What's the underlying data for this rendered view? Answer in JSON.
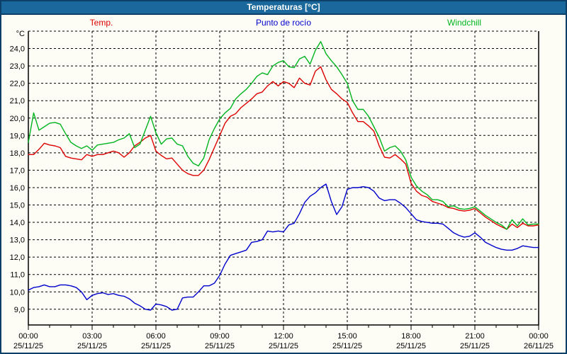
{
  "window": {
    "title": "Temperaturas [°C]"
  },
  "chart_data": {
    "type": "line",
    "title": "Temperaturas [°C]",
    "ylabel": "°C",
    "grid": "dashed",
    "legend_position": "top",
    "ylim": [
      8.1,
      25.0
    ],
    "x_start_hour": 0,
    "x_end_hour": 24,
    "x_step_hours": 0.25,
    "yticks": [
      {
        "value": 24,
        "label": "24,0"
      },
      {
        "value": 23,
        "label": "23,0"
      },
      {
        "value": 22,
        "label": "22,0"
      },
      {
        "value": 21,
        "label": "21,0"
      },
      {
        "value": 20,
        "label": "20,0"
      },
      {
        "value": 19,
        "label": "19,0"
      },
      {
        "value": 18,
        "label": "18,0"
      },
      {
        "value": 17,
        "label": "17,0"
      },
      {
        "value": 16,
        "label": "16,0"
      },
      {
        "value": 15,
        "label": "15,0"
      },
      {
        "value": 14,
        "label": "14,0"
      },
      {
        "value": 13,
        "label": "13,0"
      },
      {
        "value": 12,
        "label": "12,0"
      },
      {
        "value": 11,
        "label": "11,0"
      },
      {
        "value": 10,
        "label": "10,0"
      },
      {
        "value": 9,
        "label": "9,0"
      }
    ],
    "xticks": [
      {
        "hour": 0,
        "time": "00:00",
        "date": "25/11/25"
      },
      {
        "hour": 3,
        "time": "03:00",
        "date": "25/11/25"
      },
      {
        "hour": 6,
        "time": "06:00",
        "date": "25/11/25"
      },
      {
        "hour": 9,
        "time": "09:00",
        "date": "25/11/25"
      },
      {
        "hour": 12,
        "time": "12:00",
        "date": "25/11/25"
      },
      {
        "hour": 15,
        "time": "15:00",
        "date": "25/11/25"
      },
      {
        "hour": 18,
        "time": "18:00",
        "date": "25/11/25"
      },
      {
        "hour": 21,
        "time": "21:00",
        "date": "25/11/25"
      },
      {
        "hour": 24,
        "time": "00:00",
        "date": "26/11/25"
      }
    ],
    "series": [
      {
        "key": "temp",
        "name": "Temp.",
        "color": "#dd0000",
        "values": [
          17.9,
          17.9,
          18.2,
          18.55,
          18.45,
          18.4,
          18.3,
          17.8,
          17.7,
          17.65,
          17.6,
          17.9,
          17.8,
          17.9,
          17.9,
          18.0,
          18.1,
          18.0,
          17.75,
          18.0,
          18.4,
          18.6,
          18.85,
          19.0,
          18.1,
          17.85,
          17.65,
          17.7,
          17.35,
          17.0,
          16.8,
          16.7,
          16.7,
          17.0,
          17.6,
          18.3,
          19.0,
          19.7,
          20.1,
          20.25,
          20.6,
          20.85,
          21.1,
          21.4,
          21.5,
          21.85,
          22.1,
          21.85,
          22.1,
          22.0,
          21.75,
          22.3,
          22.0,
          21.9,
          22.7,
          22.95,
          22.2,
          21.65,
          21.4,
          21.1,
          20.9,
          20.3,
          19.8,
          19.8,
          19.55,
          19.25,
          18.4,
          17.75,
          17.7,
          17.9,
          17.65,
          17.35,
          16.25,
          15.8,
          15.55,
          15.45,
          15.2,
          15.1,
          15.0,
          14.85,
          14.8,
          14.7,
          14.65,
          14.7,
          14.8,
          14.55,
          14.3,
          14.1,
          13.9,
          13.75,
          13.6,
          13.9,
          13.7,
          13.95,
          13.8,
          13.8,
          13.85
        ]
      },
      {
        "key": "dew-point",
        "name": "Punto de rocío",
        "color": "#0000cc",
        "values": [
          10.1,
          10.25,
          10.3,
          10.4,
          10.3,
          10.3,
          10.4,
          10.4,
          10.35,
          10.25,
          10.0,
          9.55,
          9.8,
          9.9,
          9.95,
          9.85,
          9.9,
          9.8,
          9.75,
          9.6,
          9.35,
          9.2,
          9.0,
          8.95,
          9.3,
          9.25,
          9.15,
          8.95,
          9.0,
          9.65,
          9.7,
          9.7,
          10.0,
          10.35,
          10.35,
          10.5,
          10.95,
          11.6,
          12.1,
          12.2,
          12.3,
          12.4,
          12.85,
          12.9,
          13.0,
          13.5,
          13.45,
          13.5,
          13.45,
          13.85,
          13.95,
          14.5,
          15.15,
          15.5,
          15.7,
          16.0,
          16.2,
          15.2,
          14.45,
          14.9,
          15.9,
          16.0,
          16.0,
          16.05,
          16.0,
          15.8,
          15.4,
          15.25,
          15.3,
          15.3,
          15.1,
          14.85,
          14.5,
          14.15,
          14.05,
          14.0,
          13.95,
          13.95,
          13.9,
          13.65,
          13.4,
          13.25,
          13.15,
          13.2,
          13.4,
          13.15,
          12.85,
          12.7,
          12.55,
          12.45,
          12.4,
          12.4,
          12.5,
          12.65,
          12.6,
          12.55,
          12.55
        ]
      },
      {
        "key": "windchill",
        "name": "Windchill",
        "color": "#00b41e",
        "values": [
          18.6,
          20.3,
          19.3,
          19.5,
          19.7,
          19.75,
          19.65,
          19.1,
          18.6,
          18.4,
          18.25,
          18.4,
          18.15,
          18.45,
          18.5,
          18.55,
          18.6,
          18.75,
          18.85,
          19.1,
          18.3,
          18.5,
          19.3,
          20.1,
          19.15,
          18.5,
          18.8,
          18.85,
          18.5,
          18.4,
          17.8,
          17.4,
          17.25,
          17.7,
          18.75,
          19.4,
          19.95,
          20.3,
          20.55,
          21.1,
          21.4,
          21.65,
          22.0,
          22.4,
          22.6,
          22.5,
          23.0,
          23.2,
          23.3,
          22.95,
          22.9,
          23.4,
          23.55,
          23.1,
          23.9,
          24.4,
          23.7,
          23.3,
          22.95,
          22.5,
          22.0,
          21.0,
          20.5,
          20.5,
          20.1,
          19.5,
          18.9,
          18.1,
          18.3,
          18.4,
          18.1,
          17.6,
          16.6,
          16.1,
          15.8,
          15.6,
          15.3,
          15.3,
          15.2,
          14.9,
          14.95,
          14.8,
          14.75,
          14.8,
          14.9,
          14.65,
          14.4,
          14.2,
          14.0,
          13.85,
          13.6,
          14.15,
          13.8,
          14.2,
          13.85,
          13.9,
          13.9
        ]
      }
    ]
  }
}
